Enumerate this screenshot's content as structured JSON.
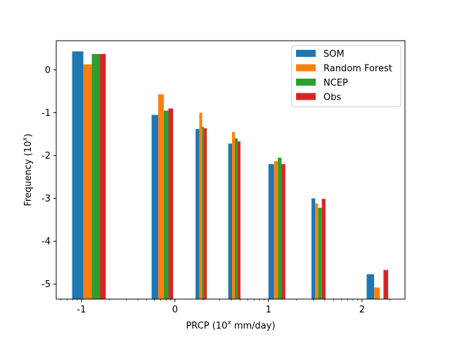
{
  "chart_data": {
    "type": "bar",
    "xlabel_prefix": "PRCP (10",
    "xlabel_exp": "x",
    "xlabel_suffix": " mm/day)",
    "ylabel_prefix": "Frequency (10",
    "ylabel_exp": "x",
    "ylabel_suffix": ")",
    "xlim": [
      -1.27,
      2.46
    ],
    "ylim": [
      -5.35,
      0.68
    ],
    "xticks": [
      {
        "value": -1,
        "label": "-1"
      },
      {
        "value": 0,
        "label": "0"
      },
      {
        "value": 1,
        "label": "1"
      },
      {
        "value": 2,
        "label": "2"
      }
    ],
    "yticks": [
      {
        "value": 0,
        "label": "0"
      },
      {
        "value": -1,
        "label": "-1"
      },
      {
        "value": -2,
        "label": "-2"
      },
      {
        "value": -3,
        "label": "-3"
      },
      {
        "value": -4,
        "label": "-4"
      },
      {
        "value": -5,
        "label": "-5"
      }
    ],
    "baseline": -5.35,
    "legend_position": "top-right",
    "grid": false,
    "series": [
      {
        "name": "SOM",
        "color": "#1f77b4",
        "bars": [
          {
            "left": -1.1,
            "right": -0.98,
            "value": 0.43
          },
          {
            "left": -0.25,
            "right": -0.18,
            "value": -1.05
          },
          {
            "left": 0.22,
            "right": 0.26,
            "value": -1.38
          },
          {
            "left": 0.57,
            "right": 0.61,
            "value": -1.72
          },
          {
            "left": 1.0,
            "right": 1.06,
            "value": -2.2
          },
          {
            "left": 1.46,
            "right": 1.5,
            "value": -3.0
          },
          {
            "left": 2.05,
            "right": 2.13,
            "value": -4.77
          }
        ]
      },
      {
        "name": "Random Forest",
        "color": "#ff7f0e",
        "bars": [
          {
            "left": -0.98,
            "right": -0.89,
            "value": 0.13
          },
          {
            "left": -0.18,
            "right": -0.12,
            "value": -0.57
          },
          {
            "left": 0.26,
            "right": 0.29,
            "value": -1.0
          },
          {
            "left": 0.61,
            "right": 0.64,
            "value": -1.45
          },
          {
            "left": 1.06,
            "right": 1.1,
            "value": -2.13
          },
          {
            "left": 1.5,
            "right": 1.53,
            "value": -3.12
          },
          {
            "left": 2.13,
            "right": 2.19,
            "value": -5.08
          }
        ]
      },
      {
        "name": "NCEP",
        "color": "#2ca02c",
        "bars": [
          {
            "left": -0.89,
            "right": -0.81,
            "value": 0.37
          },
          {
            "left": -0.12,
            "right": -0.07,
            "value": -0.95
          },
          {
            "left": 0.29,
            "right": 0.31,
            "value": -1.33
          },
          {
            "left": 0.64,
            "right": 0.67,
            "value": -1.6
          },
          {
            "left": 1.1,
            "right": 1.14,
            "value": -2.05
          },
          {
            "left": 1.53,
            "right": 1.57,
            "value": -3.22
          },
          {
            "left": 2.19,
            "right": 2.23,
            "value": null
          }
        ]
      },
      {
        "name": "Obs",
        "color": "#d62728",
        "bars": [
          {
            "left": -0.81,
            "right": -0.74,
            "value": 0.37
          },
          {
            "left": -0.07,
            "right": -0.02,
            "value": -0.9
          },
          {
            "left": 0.31,
            "right": 0.34,
            "value": -1.36
          },
          {
            "left": 0.67,
            "right": 0.7,
            "value": -1.67
          },
          {
            "left": 1.14,
            "right": 1.18,
            "value": -2.2
          },
          {
            "left": 1.57,
            "right": 1.61,
            "value": -3.01
          },
          {
            "left": 2.23,
            "right": 2.28,
            "value": -4.67
          }
        ]
      }
    ]
  }
}
